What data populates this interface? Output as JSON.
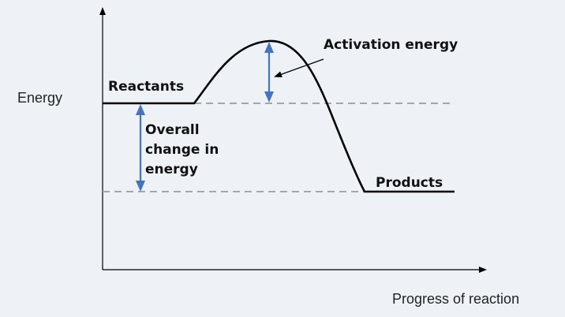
{
  "diagram": {
    "y_axis_label": "Energy",
    "x_axis_label": "Progress of reaction",
    "reactants_label": "Reactants",
    "products_label": "Products",
    "activation_label": "Activation energy",
    "overall_change_lines": [
      "Overall",
      "change in",
      "energy"
    ]
  },
  "colors": {
    "curve": "#000000",
    "axis": "#000000",
    "dashed_level": "#a6a6a6",
    "arrow_blue": "#4472c4",
    "background": "#eef1f6"
  }
}
